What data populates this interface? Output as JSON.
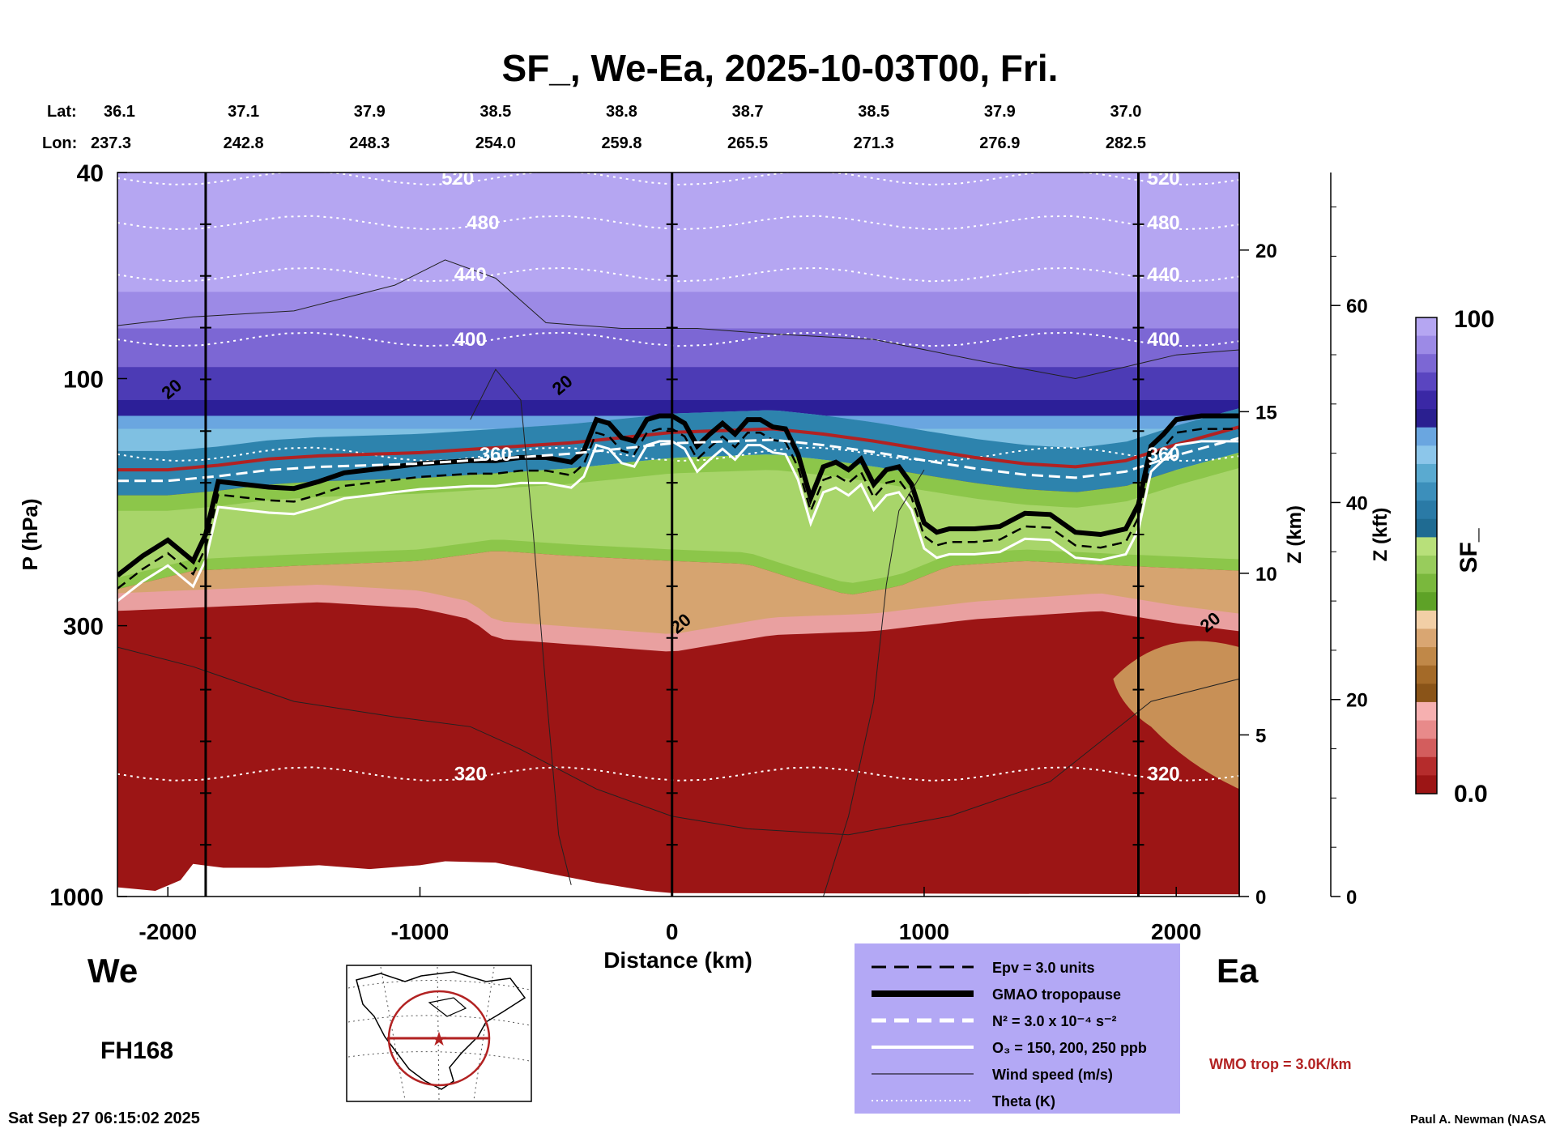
{
  "chart_data": {
    "type": "heatmap",
    "title": "SF_, We-Ea, 2025-10-03T00, Fri.",
    "xlabel": "Distance (km)",
    "ylabel": "P (hPa)",
    "ylabel_right_km": "Z (km)",
    "ylabel_right_kft": "Z (kft)",
    "colorbar_label": "SF_",
    "colorbar_max_label": "100",
    "colorbar_min_label": "0.0",
    "xlim": [
      -2200,
      2250
    ],
    "ylim_hpa": [
      1000,
      40
    ],
    "x_ticks": [
      -2000,
      -1000,
      0,
      1000,
      2000
    ],
    "x_tick_labels": [
      "-2000",
      "-1000",
      "0",
      "1000",
      "2000"
    ],
    "p_ticks": [
      40,
      100,
      300,
      1000
    ],
    "p_tick_labels": [
      "40",
      "100",
      "300",
      "1000"
    ],
    "z_km_ticks": [
      0,
      5,
      10,
      15,
      20
    ],
    "z_km_tick_labels": [
      "0",
      "5",
      "10",
      "15",
      "20"
    ],
    "z_kft_ticks": [
      0,
      20,
      40,
      60
    ],
    "z_kft_tick_labels": [
      "0",
      "20",
      "40",
      "60"
    ],
    "lat_label": "Lat:",
    "lon_label": "Lon:",
    "lats": [
      "36.1",
      "37.1",
      "37.9",
      "38.5",
      "38.8",
      "38.7",
      "38.5",
      "37.9",
      "37.0"
    ],
    "lons": [
      "237.3",
      "242.8",
      "248.3",
      "254.0",
      "259.8",
      "265.5",
      "271.3",
      "276.9",
      "282.5"
    ],
    "coord_x": [
      -2200,
      -1700,
      -1200,
      -700,
      -200,
      300,
      800,
      1300,
      1800
    ],
    "vertical_lines_km": [
      -1850,
      0,
      1850
    ],
    "theta_levels": [
      {
        "label": "520",
        "p": 41
      },
      {
        "label": "480",
        "p": 50
      },
      {
        "label": "440",
        "p": 63
      },
      {
        "label": "400",
        "p": 84
      },
      {
        "label": "360",
        "p": 140
      },
      {
        "label": "320",
        "p": 580
      }
    ],
    "wind_labels": [
      "20",
      "20",
      "20",
      "20"
    ],
    "tropopause_x": [
      -2200,
      -2100,
      -2000,
      -1900,
      -1850,
      -1800,
      -1700,
      -1600,
      -1500,
      -1400,
      -1300,
      -1200,
      -1100,
      -1000,
      -900,
      -800,
      -700,
      -600,
      -500,
      -400,
      -350,
      -300,
      -250,
      -200,
      -150,
      -100,
      -50,
      0,
      50,
      100,
      150,
      200,
      250,
      300,
      350,
      400,
      450,
      500,
      550,
      600,
      650,
      700,
      750,
      800,
      850,
      900,
      950,
      1000,
      1050,
      1100,
      1200,
      1300,
      1400,
      1500,
      1600,
      1700,
      1800,
      1850,
      1900,
      1950,
      2000,
      2100,
      2200,
      2250
    ],
    "tropopause_p": [
      240,
      220,
      205,
      225,
      200,
      158,
      160,
      162,
      163,
      158,
      152,
      150,
      148,
      146,
      145,
      144,
      144,
      142,
      142,
      145,
      138,
      120,
      122,
      130,
      132,
      120,
      118,
      118,
      122,
      135,
      128,
      122,
      128,
      120,
      120,
      124,
      125,
      140,
      170,
      148,
      145,
      150,
      143,
      160,
      150,
      148,
      160,
      190,
      198,
      195,
      195,
      193,
      182,
      183,
      198,
      200,
      195,
      175,
      135,
      128,
      120,
      118,
      118,
      118
    ],
    "wmo_x": [
      -2200,
      -2000,
      -1800,
      -1600,
      -1400,
      -1200,
      -1000,
      -800,
      -600,
      -400,
      -200,
      0,
      200,
      400,
      600,
      800,
      1000,
      1200,
      1400,
      1600,
      1800,
      2000,
      2250
    ],
    "wmo_p": [
      150,
      150,
      147,
      143,
      141,
      140,
      139,
      137,
      135,
      133,
      130,
      127,
      126,
      125,
      128,
      132,
      137,
      142,
      146,
      148,
      144,
      134,
      124
    ],
    "sf_top_band": [
      {
        "p": 40,
        "color": "#b5a6f2"
      },
      {
        "p": 68,
        "color": "#9c8ae6"
      },
      {
        "p": 80,
        "color": "#7c67d4"
      },
      {
        "p": 95,
        "color": "#4c3bb5"
      },
      {
        "p": 110,
        "color": "#2c1f98"
      },
      {
        "p": 118,
        "color": "#6aa6e0"
      },
      {
        "p": 128,
        "color": "#8cc6ea"
      }
    ],
    "colorbar_colors": [
      "#b5a6f2",
      "#9c8ae6",
      "#7c67d4",
      "#5a45c0",
      "#3a28a5",
      "#2a1f90",
      "#6aa6e0",
      "#8cc6ea",
      "#5aaad0",
      "#3c8fbb",
      "#2a7aa6",
      "#1f6b92",
      "#b8e07a",
      "#98cc5c",
      "#7ab83d",
      "#5ea227",
      "#f2cfa6",
      "#d9a672",
      "#c08848",
      "#a46a28",
      "#8a5418",
      "#f6b0b0",
      "#e88a8a",
      "#d35d5d",
      "#b52c2c",
      "#9c1515"
    ],
    "legend_entries": [
      {
        "style": "dashed-black",
        "label": "Epv = 3.0 units"
      },
      {
        "style": "thick-black",
        "label": "GMAO tropopause"
      },
      {
        "style": "dashed-white",
        "label": "N² = 3.0 x 10⁻⁴ s⁻²"
      },
      {
        "style": "solid-white",
        "label": "O₃ = 150, 200, 250 ppb"
      },
      {
        "style": "thin-black",
        "label": "Wind speed (m/s)"
      },
      {
        "style": "dotted-white",
        "label": "Theta (K)"
      }
    ],
    "wmo_label": "WMO trop = 3.0K/km",
    "legend_bg": "#b3a8f5",
    "sf_low_color": "#9c1515",
    "wmo_color": "#b22222"
  },
  "labels": {
    "west": "We",
    "east": "Ea",
    "forecast_hour": "FH168",
    "timestamp": "Sat Sep 27 06:15:02 2025",
    "credit": "Paul A. Newman (NASA"
  }
}
